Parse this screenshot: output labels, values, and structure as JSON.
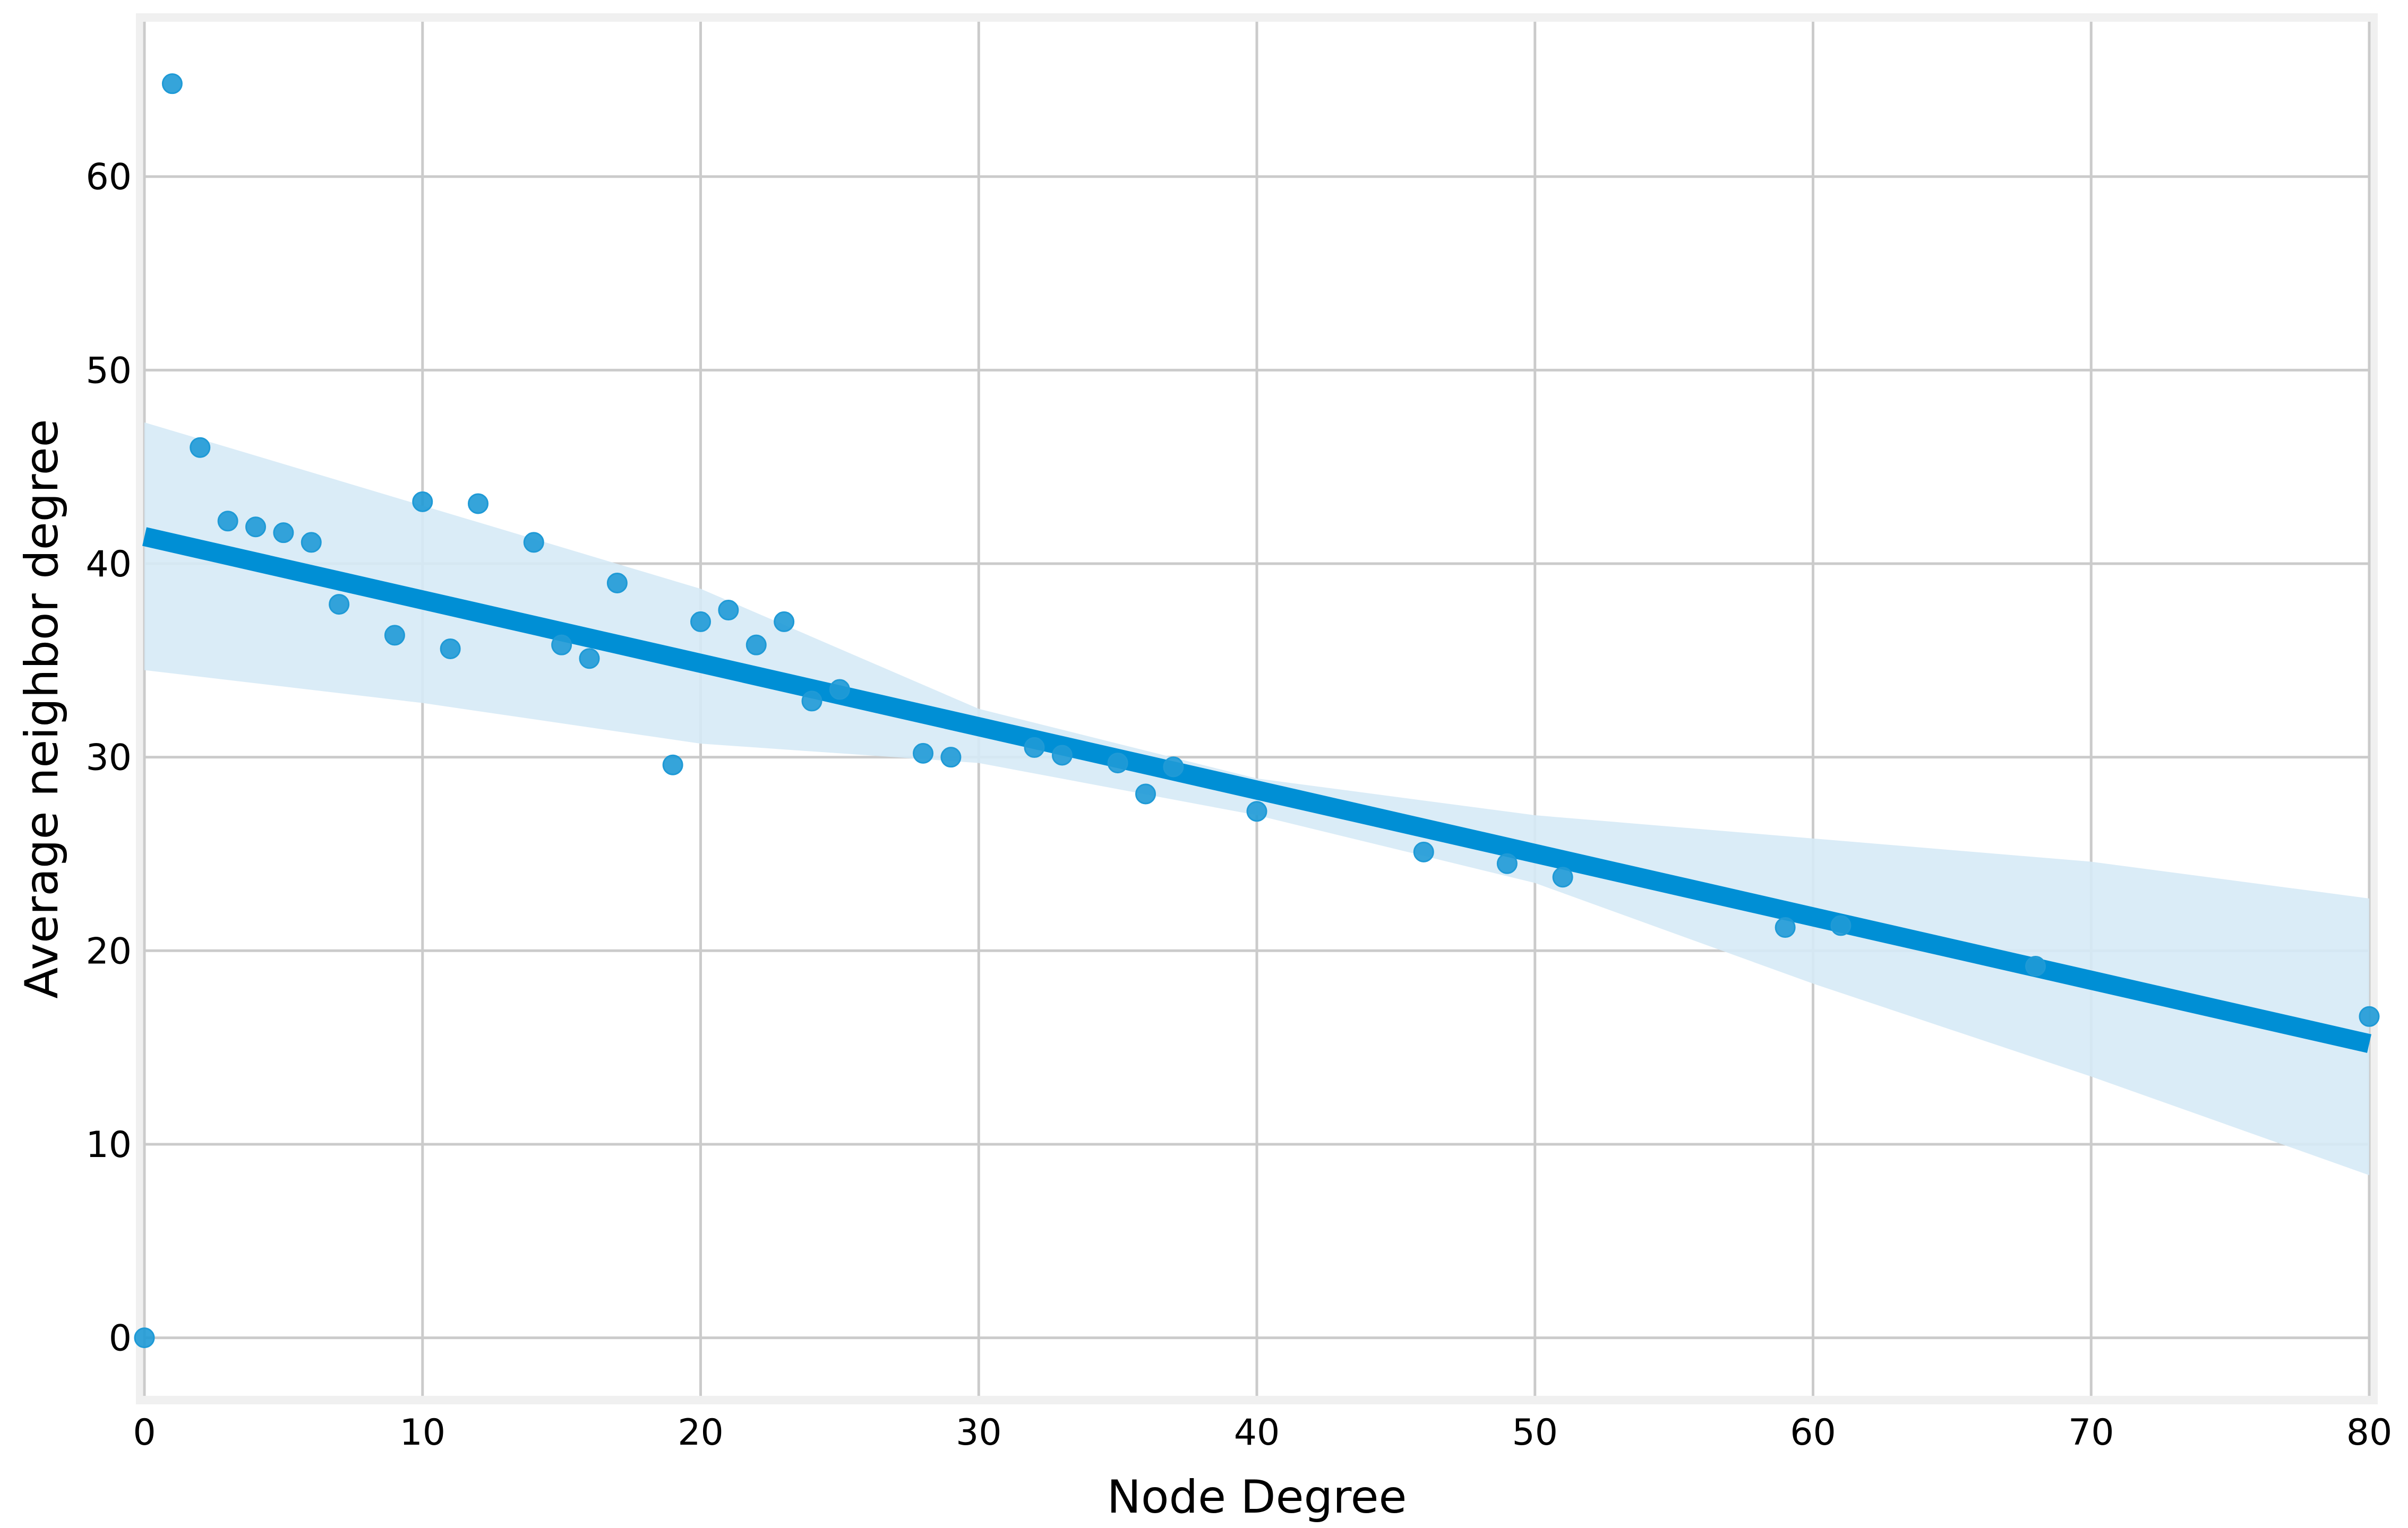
{
  "chart_data": {
    "type": "scatter",
    "title": "",
    "xlabel": "Node Degree",
    "ylabel": "Average neighbor degree",
    "xlim": [
      0,
      80
    ],
    "ylim": [
      -3,
      68
    ],
    "x_ticks": [
      0,
      10,
      20,
      30,
      40,
      50,
      60,
      70,
      80
    ],
    "y_ticks": [
      0,
      10,
      20,
      30,
      40,
      50,
      60
    ],
    "grid": true,
    "legend": "none",
    "colors": {
      "points": "#1f9ad6",
      "regression_line": "#008fd5",
      "confidence_band": "#d6eaf6",
      "grid": "#cbcbcb",
      "frame": "#f0f0f0"
    },
    "series": [
      {
        "x": [
          0,
          1,
          2,
          3,
          4,
          5,
          6,
          7,
          9,
          10,
          11,
          12,
          14,
          15,
          16,
          17,
          19,
          20,
          21,
          22,
          23,
          24,
          25,
          28,
          29,
          32,
          33,
          35,
          36,
          37,
          40,
          46,
          49,
          51,
          59,
          61,
          68,
          80
        ],
        "y": [
          0,
          64.8,
          46.0,
          42.2,
          41.9,
          41.6,
          41.1,
          37.9,
          36.3,
          43.2,
          35.6,
          43.1,
          41.1,
          35.8,
          35.1,
          39.0,
          29.6,
          37.0,
          37.6,
          35.8,
          37.0,
          32.9,
          33.5,
          30.2,
          30.0,
          30.5,
          30.1,
          29.7,
          28.1,
          29.5,
          27.2,
          25.1,
          24.5,
          23.8,
          21.2,
          21.3,
          19.2,
          16.6
        ]
      }
    ],
    "regression_line": {
      "x": [
        0,
        80
      ],
      "y": [
        41.4,
        15.2
      ]
    },
    "confidence_band": {
      "x": [
        0,
        10,
        20,
        30,
        40,
        50,
        60,
        70,
        80
      ],
      "upper": [
        47.3,
        43.0,
        38.7,
        32.5,
        28.9,
        27.0,
        25.8,
        24.6,
        22.7
      ],
      "lower": [
        34.5,
        32.8,
        30.7,
        29.7,
        27.0,
        23.5,
        18.3,
        13.5,
        8.4
      ]
    }
  }
}
